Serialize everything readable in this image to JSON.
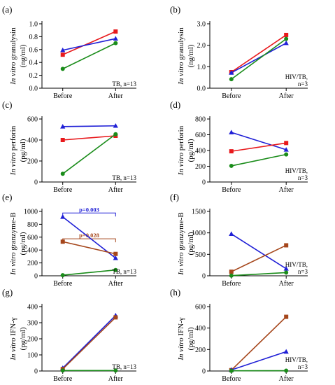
{
  "colors": {
    "blue": "#1f1fd6",
    "red": "#e8191c",
    "green": "#1a8c1a",
    "brown": "#a5461b",
    "axis": "#000000"
  },
  "x_categories": [
    "Before",
    "After"
  ],
  "chart_data": [
    {
      "id": "a",
      "panel_label": "(a)",
      "type": "line",
      "ylabel_italic": "In vitro",
      "ylabel_rest": " granulysin",
      "ylabel_unit": "(ng/ml)",
      "ylim": [
        0,
        1.0
      ],
      "yticks": [
        "0.0",
        "0.2",
        "0.4",
        "0.6",
        "0.8",
        "1.0"
      ],
      "ytick_values": [
        0,
        0.2,
        0.4,
        0.6,
        0.8,
        1.0
      ],
      "annotation": [
        "TB, n=13"
      ],
      "categories": [
        "Before",
        "After"
      ],
      "series": [
        {
          "color": "red",
          "marker": "square",
          "values": [
            0.52,
            0.88
          ]
        },
        {
          "color": "blue",
          "marker": "triangle",
          "values": [
            0.59,
            0.77
          ]
        },
        {
          "color": "green",
          "marker": "circle",
          "values": [
            0.3,
            0.7
          ]
        }
      ],
      "brackets": []
    },
    {
      "id": "b",
      "panel_label": "(b)",
      "type": "line",
      "ylabel_italic": "In vitro",
      "ylabel_rest": " granulysin",
      "ylabel_unit": "(ng/ml)",
      "ylim": [
        0,
        3.0
      ],
      "yticks": [
        "0.0",
        "1.0",
        "2.0",
        "3.0"
      ],
      "ytick_values": [
        0,
        1,
        2,
        3
      ],
      "annotation": [
        "HIV/TB,",
        "n=3"
      ],
      "categories": [
        "Before",
        "After"
      ],
      "series": [
        {
          "color": "red",
          "marker": "square",
          "values": [
            0.75,
            2.48
          ]
        },
        {
          "color": "blue",
          "marker": "triangle",
          "values": [
            0.72,
            2.1
          ]
        },
        {
          "color": "green",
          "marker": "circle",
          "values": [
            0.42,
            2.3
          ]
        }
      ],
      "brackets": []
    },
    {
      "id": "c",
      "panel_label": "(c)",
      "type": "line",
      "ylabel_italic": "In vitro",
      "ylabel_rest": " perforin",
      "ylabel_unit": "(pg/ml)",
      "ylim": [
        0,
        600
      ],
      "yticks": [
        "0",
        "200",
        "400",
        "600"
      ],
      "ytick_values": [
        0,
        200,
        400,
        600
      ],
      "annotation": [
        "TB, n=13"
      ],
      "categories": [
        "Before",
        "After"
      ],
      "series": [
        {
          "color": "blue",
          "marker": "triangle",
          "values": [
            528,
            535
          ]
        },
        {
          "color": "red",
          "marker": "square",
          "values": [
            400,
            440
          ]
        },
        {
          "color": "green",
          "marker": "circle",
          "values": [
            78,
            455
          ]
        }
      ],
      "brackets": []
    },
    {
      "id": "d",
      "panel_label": "(d)",
      "type": "line",
      "ylabel_italic": "In vitro",
      "ylabel_rest": " perforin",
      "ylabel_unit": "(pg/ml)",
      "ylim": [
        0,
        800
      ],
      "yticks": [
        "0",
        "200",
        "400",
        "600",
        "800"
      ],
      "ytick_values": [
        0,
        200,
        400,
        600,
        800
      ],
      "annotation": [
        "HIV/TB,",
        "n=3"
      ],
      "categories": [
        "Before",
        "After"
      ],
      "series": [
        {
          "color": "blue",
          "marker": "triangle",
          "values": [
            630,
            410
          ]
        },
        {
          "color": "red",
          "marker": "square",
          "values": [
            390,
            495
          ]
        },
        {
          "color": "green",
          "marker": "circle",
          "values": [
            205,
            350
          ]
        }
      ],
      "brackets": []
    },
    {
      "id": "e",
      "panel_label": "(e)",
      "type": "line",
      "ylabel_italic": "In vitro",
      "ylabel_rest": " granzyme-B",
      "ylabel_unit": "(pg/ml)",
      "ylim": [
        0,
        1000
      ],
      "yticks": [
        "0",
        "200",
        "400",
        "600",
        "800",
        "1000"
      ],
      "ytick_values": [
        0,
        200,
        400,
        600,
        800,
        1000
      ],
      "annotation": [
        "TB, n=13"
      ],
      "categories": [
        "Before",
        "After"
      ],
      "series": [
        {
          "color": "blue",
          "marker": "triangle",
          "values": [
            915,
            275
          ]
        },
        {
          "color": "brown",
          "marker": "square",
          "values": [
            530,
            340
          ]
        },
        {
          "color": "green",
          "marker": "circle",
          "values": [
            10,
            90
          ]
        }
      ],
      "brackets": [
        {
          "color": "blue",
          "label": "p=0.003",
          "y": 975
        },
        {
          "color": "brown",
          "label": "p=0.028",
          "y": 575
        }
      ]
    },
    {
      "id": "f",
      "panel_label": "(f)",
      "type": "line",
      "ylabel_italic": "In vitro",
      "ylabel_rest": " granzyme-B",
      "ylabel_unit": "(pg/ml)",
      "ylim": [
        0,
        1500
      ],
      "yticks": [
        "0",
        "500",
        "1000",
        "1500"
      ],
      "ytick_values": [
        0,
        500,
        1000,
        1500
      ],
      "annotation": [
        "HIV/TB,",
        "n=3"
      ],
      "categories": [
        "Before",
        "After"
      ],
      "series": [
        {
          "color": "blue",
          "marker": "triangle",
          "values": [
            975,
            165
          ]
        },
        {
          "color": "brown",
          "marker": "square",
          "values": [
            95,
            710
          ]
        },
        {
          "color": "green",
          "marker": "circle",
          "values": [
            5,
            75
          ]
        }
      ],
      "brackets": []
    },
    {
      "id": "g",
      "panel_label": "(g)",
      "type": "line",
      "ylabel_italic": "In vitro",
      "ylabel_rest": " IFN-γ",
      "ylabel_unit": "(pg/ml)",
      "ylim": [
        0,
        400
      ],
      "yticks": [
        "0",
        "100",
        "200",
        "300",
        "400"
      ],
      "ytick_values": [
        0,
        100,
        200,
        300,
        400
      ],
      "annotation": [
        "TB, n=13"
      ],
      "categories": [
        "Before",
        "After"
      ],
      "series": [
        {
          "color": "blue",
          "marker": "triangle",
          "values": [
            18,
            345
          ]
        },
        {
          "color": "brown",
          "marker": "square",
          "values": [
            12,
            333
          ]
        },
        {
          "color": "green",
          "marker": "circle",
          "values": [
            3,
            3
          ]
        }
      ],
      "brackets": []
    },
    {
      "id": "h",
      "panel_label": "(h)",
      "type": "line",
      "ylabel_italic": "In vitro",
      "ylabel_rest": " IFN-γ",
      "ylabel_unit": "(pg/ml)",
      "ylim": [
        0,
        600
      ],
      "yticks": [
        "0",
        "200",
        "400",
        "600"
      ],
      "ytick_values": [
        0,
        200,
        400,
        600
      ],
      "annotation": [
        "HIV/TB,",
        "n=3"
      ],
      "categories": [
        "Before",
        "After"
      ],
      "series": [
        {
          "color": "brown",
          "marker": "square",
          "values": [
            8,
            505
          ]
        },
        {
          "color": "blue",
          "marker": "triangle",
          "values": [
            10,
            180
          ]
        },
        {
          "color": "green",
          "marker": "circle",
          "values": [
            2,
            3
          ]
        }
      ],
      "brackets": []
    }
  ]
}
